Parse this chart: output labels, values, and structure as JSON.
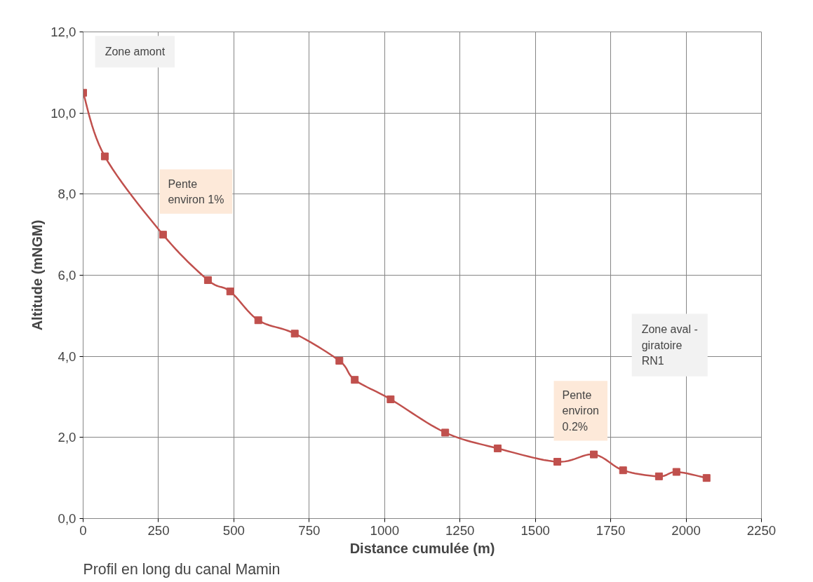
{
  "chart_data": {
    "type": "line",
    "xlabel": "Distance cumulée (m)",
    "ylabel": "Altitude (mNGM)",
    "x": [
      0,
      72,
      265,
      414,
      488,
      581,
      702,
      850,
      901,
      1020,
      1201,
      1375,
      1573,
      1694,
      1791,
      1910,
      1968,
      2068
    ],
    "series": [
      {
        "color": "#c0504d",
        "values": [
          10.5,
          8.93,
          7.0,
          5.88,
          5.6,
          4.89,
          4.56,
          3.89,
          3.42,
          2.94,
          2.12,
          1.73,
          1.4,
          1.58,
          1.19,
          1.04,
          1.15,
          1.0
        ]
      }
    ],
    "xlim": [
      0,
      2250
    ],
    "xticks": [
      0,
      250,
      500,
      750,
      1000,
      1250,
      1500,
      1750,
      2000,
      2250
    ],
    "ylim": [
      0,
      12
    ],
    "yticks": [
      {
        "value": 0,
        "label": "0,0"
      },
      {
        "value": 2,
        "label": "2,0"
      },
      {
        "value": 4,
        "label": "4,0"
      },
      {
        "value": 6,
        "label": "6,0"
      },
      {
        "value": 8,
        "label": "8,0"
      },
      {
        "value": 10,
        "label": "10,0"
      },
      {
        "value": 12,
        "label": "12,0"
      }
    ],
    "grid": true,
    "marker": "square",
    "line_style": "solid",
    "annotations": [
      "Zone amont",
      {
        "text": "Pente environ 1%",
        "x": 265,
        "y": 7.0
      },
      "Zone aval - giratoire RN1",
      {
        "text": "Pente environ 0.2%",
        "x": 1573,
        "y": 1.4
      },
      "Profil en long du canal Mamin"
    ]
  }
}
